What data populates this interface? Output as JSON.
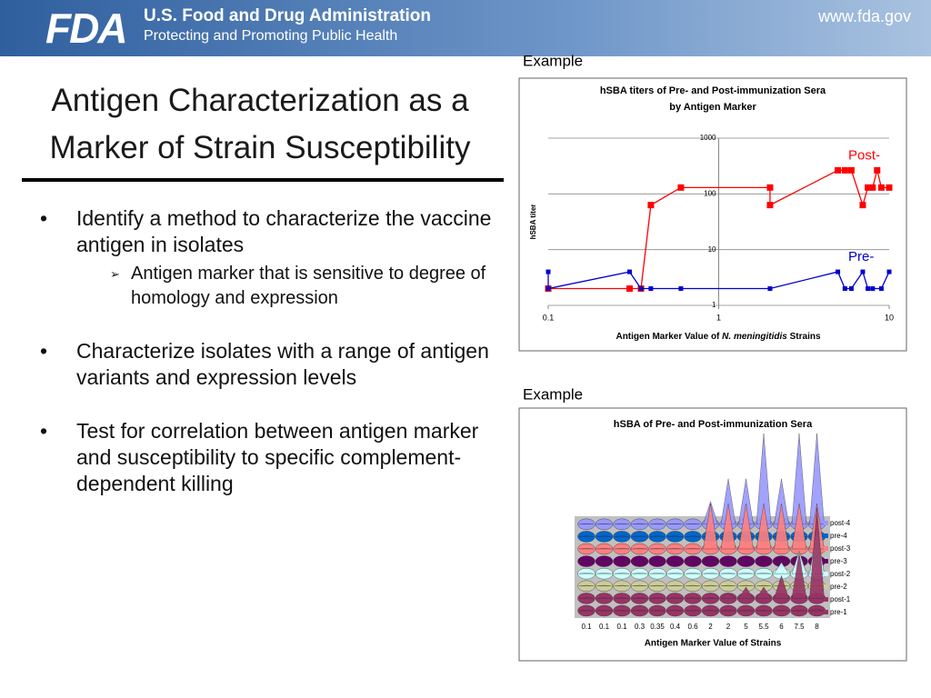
{
  "header": {
    "logo": "FDA",
    "agency": "U.S. Food and Drug Administration",
    "tagline": "Protecting and Promoting Public Health",
    "url": "www.fda.gov"
  },
  "title_lines": [
    "Antigen Characterization as a",
    "Marker of Strain Susceptibility"
  ],
  "bullets": [
    {
      "text": "Identify a method to characterize the vaccine antigen in isolates",
      "sub": [
        "Antigen marker that is sensitive to degree of homology and expression"
      ]
    },
    {
      "text": "Characterize isolates with a range of antigen variants and expression levels"
    },
    {
      "text": "Test for correlation between antigen marker and susceptibility to specific complement-dependent killing"
    }
  ],
  "chart_data": [
    {
      "type": "line",
      "caption": "Example",
      "title_lines": [
        "hSBA titers of Pre- and Post-immunization Sera",
        "by Antigen Marker"
      ],
      "xlabel_parts": [
        "Antigen Marker Value of ",
        "N. meningitidis",
        " Strains"
      ],
      "ylabel": "hSBA titer",
      "xlog": true,
      "ylog": true,
      "xlim": [
        0.1,
        10
      ],
      "xticks": [
        0.1,
        1,
        10
      ],
      "ylim": [
        1,
        1000
      ],
      "yticks": [
        1,
        10,
        100,
        1000
      ],
      "grid": true,
      "marker": "square",
      "series": [
        {
          "name": "Post-",
          "color": "#ff0000",
          "x": [
            0.1,
            0.3,
            0.35,
            0.4,
            0.6,
            2,
            2,
            5,
            5.5,
            6,
            7,
            7.5,
            8,
            8.5,
            9,
            10
          ],
          "values": [
            2,
            2,
            2,
            63,
            130,
            130,
            63,
            265,
            265,
            265,
            63,
            130,
            130,
            265,
            130,
            130
          ]
        },
        {
          "name": "Pre-",
          "color": "#0000cc",
          "x": [
            0.1,
            0.1,
            0.3,
            0.35,
            0.4,
            0.6,
            2,
            5,
            5.5,
            6,
            7,
            7.5,
            8,
            9,
            10
          ],
          "values": [
            4,
            2,
            4,
            2,
            2,
            2,
            2,
            4,
            2,
            2,
            4,
            2,
            2,
            2,
            4
          ]
        }
      ]
    },
    {
      "type": "cone3d",
      "caption": "Example",
      "title": "hSBA of Pre- and Post-immunization Sera",
      "xlabel": "Antigen Marker Value of Strains",
      "categories": [
        "0.1",
        "0.1",
        "0.1",
        "0.3",
        "0.35",
        "0.4",
        "0.6",
        "2",
        "2",
        "5",
        "5.5",
        "6",
        "7.5",
        "8"
      ],
      "zlim": [
        0,
        256
      ],
      "series": [
        {
          "name": "pre-1",
          "color": "#993366",
          "values": [
            2,
            2,
            2,
            2,
            2,
            2,
            2,
            2,
            2,
            2,
            2,
            2,
            2,
            4
          ]
        },
        {
          "name": "post-1",
          "color": "#993366",
          "values": [
            2,
            2,
            2,
            2,
            2,
            2,
            2,
            2,
            16,
            32,
            32,
            64,
            128,
            256
          ]
        },
        {
          "name": "pre-2",
          "color": "#cccc99",
          "values": [
            2,
            2,
            2,
            2,
            2,
            2,
            2,
            2,
            2,
            2,
            2,
            2,
            2,
            2
          ]
        },
        {
          "name": "post-2",
          "color": "#ccffff",
          "values": [
            2,
            2,
            2,
            2,
            2,
            2,
            2,
            2,
            2,
            2,
            2,
            32,
            64,
            128
          ]
        },
        {
          "name": "pre-3",
          "color": "#660066",
          "values": [
            2,
            2,
            2,
            2,
            2,
            2,
            2,
            2,
            2,
            2,
            2,
            2,
            2,
            2
          ]
        },
        {
          "name": "post-3",
          "color": "#ff8080",
          "values": [
            2,
            2,
            2,
            2,
            2,
            2,
            2,
            128,
            128,
            128,
            128,
            128,
            128,
            128
          ]
        },
        {
          "name": "pre-4",
          "color": "#0066cc",
          "values": [
            2,
            2,
            2,
            2,
            2,
            2,
            2,
            2,
            2,
            2,
            2,
            2,
            2,
            2
          ]
        },
        {
          "name": "post-4",
          "color": "#9999ff",
          "values": [
            2,
            2,
            2,
            2,
            2,
            2,
            2,
            64,
            128,
            128,
            256,
            128,
            256,
            256
          ]
        }
      ]
    }
  ]
}
